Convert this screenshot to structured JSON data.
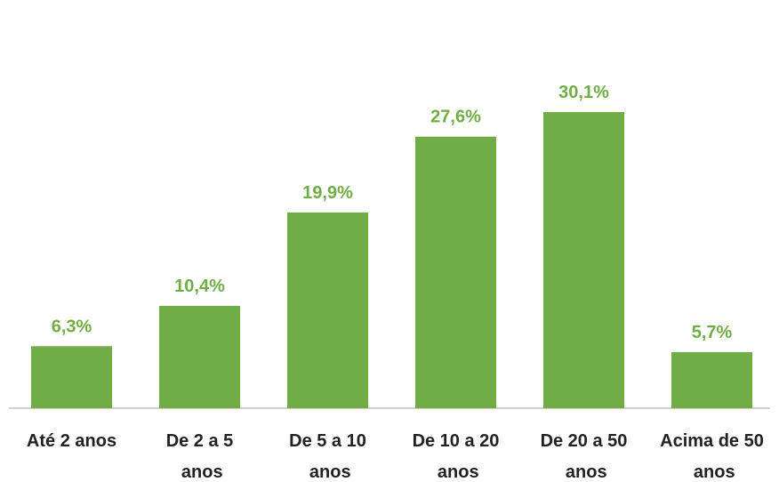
{
  "chart_data": {
    "type": "bar",
    "categories": [
      "Até 2 anos",
      "De 2 a 5 anos",
      "De 5 a 10 anos",
      "De 10 a 20 anos",
      "De 20 a 50 anos",
      "Acima de 50 anos"
    ],
    "values": [
      6.3,
      10.4,
      19.9,
      27.6,
      30.1,
      5.7
    ],
    "value_labels": [
      "6,3%",
      "10,4%",
      "19,9%",
      "27,6%",
      "30,1%",
      "5,7%"
    ],
    "color": "#70ad47"
  }
}
